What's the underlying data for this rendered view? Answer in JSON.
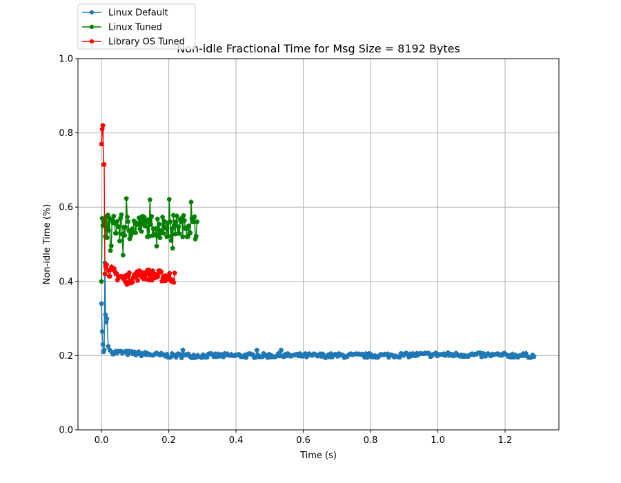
{
  "chart_data": {
    "type": "line",
    "title": "Non-idle Fractional Time for Msg Size = 8192 Bytes",
    "xlabel": "Time (s)",
    "ylabel": "Non-idle Time (%)",
    "xlim": [
      -0.07,
      1.36
    ],
    "ylim": [
      0.0,
      1.0
    ],
    "xticks": [
      "0.0",
      "0.2",
      "0.4",
      "0.6",
      "0.8",
      "1.0",
      "1.2"
    ],
    "yticks": [
      "0.0",
      "0.2",
      "0.4",
      "0.6",
      "0.8",
      "1.0"
    ],
    "grid": true,
    "legend_position": "top-left, above plot",
    "marker": "pentagon",
    "series": [
      {
        "name": "Linux Default",
        "color": "#1f77b4",
        "x_range": [
          0.0,
          1.29
        ],
        "spike": [
          [
            0.0,
            0.34
          ],
          [
            0.002,
            0.265
          ],
          [
            0.004,
            0.23
          ],
          [
            0.006,
            0.21
          ],
          [
            0.008,
            0.215
          ],
          [
            0.01,
            0.45
          ],
          [
            0.012,
            0.31
          ],
          [
            0.014,
            0.29
          ],
          [
            0.016,
            0.3
          ],
          [
            0.02,
            0.225
          ],
          [
            0.025,
            0.215
          ],
          [
            0.03,
            0.21
          ]
        ],
        "segments": [
          [
            0.03,
            0.21
          ],
          [
            0.2,
            0.2
          ],
          [
            0.4,
            0.2
          ],
          [
            0.8,
            0.2
          ],
          [
            1.0,
            0.203
          ],
          [
            1.29,
            0.2
          ]
        ],
        "noise_amplitude": 0.012
      },
      {
        "name": "Linux Tuned",
        "color": "#008000",
        "x_range": [
          0.0,
          0.285
        ],
        "spike": [
          [
            0.0,
            0.4
          ],
          [
            0.002,
            0.57
          ],
          [
            0.004,
            0.55
          ]
        ],
        "segments": [
          [
            0.004,
            0.55
          ],
          [
            0.28,
            0.55
          ]
        ],
        "noise_amplitude": 0.06
      },
      {
        "name": "Library OS Tuned",
        "color": "#ff0000",
        "x_range": [
          0.0,
          0.22
        ],
        "spike": [
          [
            0.0,
            0.77
          ],
          [
            0.002,
            0.81
          ],
          [
            0.004,
            0.82
          ],
          [
            0.006,
            0.715
          ],
          [
            0.008,
            0.715
          ],
          [
            0.01,
            0.42
          ],
          [
            0.012,
            0.44
          ],
          [
            0.015,
            0.445
          ],
          [
            0.02,
            0.43
          ]
        ],
        "segments": [
          [
            0.02,
            0.43
          ],
          [
            0.07,
            0.405
          ],
          [
            0.12,
            0.42
          ],
          [
            0.22,
            0.41
          ]
        ],
        "noise_amplitude": 0.03
      }
    ]
  }
}
